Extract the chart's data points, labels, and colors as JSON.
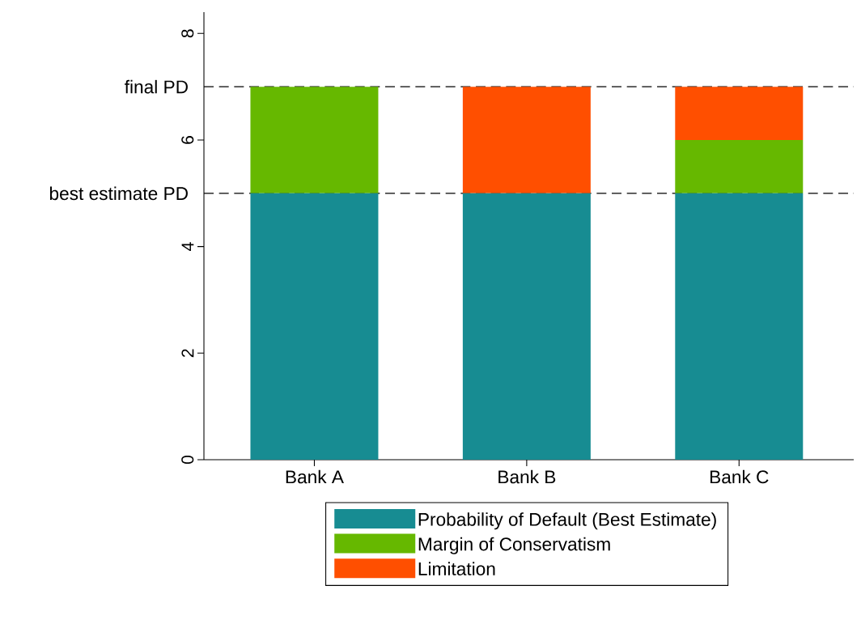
{
  "chart_data": {
    "type": "bar",
    "stacked": true,
    "categories": [
      "Bank A",
      "Bank B",
      "Bank C"
    ],
    "series": [
      {
        "name": "Probability of Default (Best Estimate)",
        "color": "#178c92",
        "values": [
          5,
          5,
          5
        ]
      },
      {
        "name": "Margin of Conservatism",
        "color": "#66b800",
        "values": [
          2,
          0,
          1
        ]
      },
      {
        "name": "Limitation",
        "color": "#ff4f00",
        "values": [
          0,
          2,
          1
        ]
      }
    ],
    "ylim": [
      0,
      8.4
    ],
    "yticks": [
      0,
      2,
      4,
      6,
      8
    ],
    "ref_lines": [
      {
        "axis": "y",
        "value": 5,
        "label": "best estimate PD",
        "color": "#000000",
        "line_style": "dashed"
      },
      {
        "axis": "y",
        "value": 7,
        "label": "final PD",
        "color": "#000000",
        "line_style": "dashed"
      }
    ],
    "legend": "bottom"
  }
}
